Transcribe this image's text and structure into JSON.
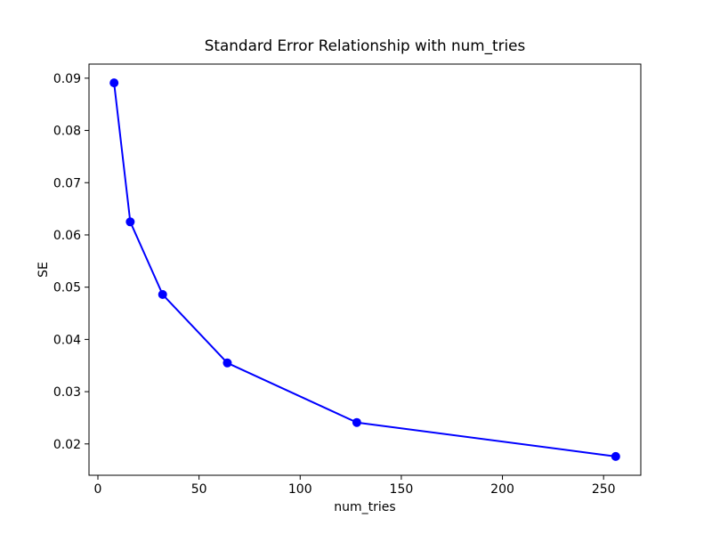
{
  "chart_data": {
    "type": "line",
    "title": "Standard Error Relationship with num_tries",
    "xlabel": "num_tries",
    "ylabel": "SE",
    "series": [
      {
        "name": "SE",
        "x": [
          8,
          16,
          32,
          64,
          128,
          256
        ],
        "y": [
          0.0891,
          0.0625,
          0.0486,
          0.0355,
          0.0241,
          0.0176
        ],
        "color": "#0000ff",
        "marker": "circle",
        "marker_radius": 5,
        "line_width": 2
      }
    ],
    "xticks": [
      0,
      50,
      100,
      150,
      200,
      250
    ],
    "yticks": [
      0.02,
      0.03,
      0.04,
      0.05,
      0.06,
      0.07,
      0.08,
      0.09
    ],
    "ytick_decimals": 2,
    "xlim": [
      -4.4,
      268.4
    ],
    "ylim": [
      0.014,
      0.0927
    ],
    "grid": false,
    "legend": null,
    "background_color": "#ffffff",
    "frame_color": "#000000"
  }
}
